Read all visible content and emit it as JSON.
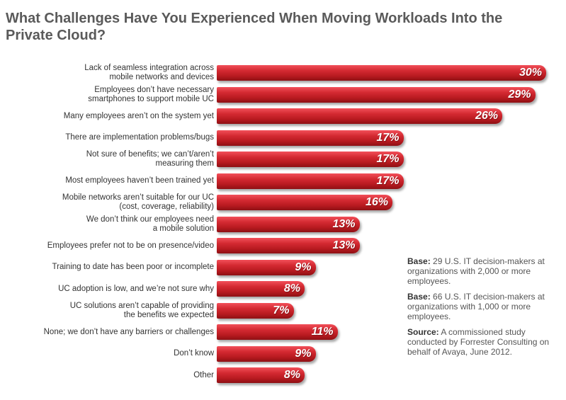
{
  "chart_data": {
    "type": "bar",
    "orientation": "horizontal",
    "title": "What Challenges Have You Experienced When Moving Workloads Into the Private Cloud?",
    "categories": [
      "Lack of seamless integration across mobile networks and devices",
      "Employees don’t have necessary smartphones to support mobile UC",
      "Many employees aren’t on the system yet",
      "There are implementation problems/bugs",
      "Not sure of benefits; we can’t/aren’t measuring them",
      "Most employees haven’t been trained yet",
      "Mobile networks aren’t suitable for our UC (cost, coverage, reliability)",
      "We don’t think our employees need a mobile solution",
      "Employees prefer not to be on presence/video",
      "Training to date has been poor or incomplete",
      "UC adoption is low, and we’re not sure why",
      "UC solutions aren’t capable of providing the benefits we expected",
      "None; we don’t have any barriers or challenges",
      "Don’t know",
      "Other"
    ],
    "values": [
      30,
      29,
      26,
      17,
      17,
      17,
      16,
      13,
      13,
      9,
      8,
      7,
      11,
      9,
      8
    ],
    "value_labels": [
      "30%",
      "29%",
      "26%",
      "17%",
      "17%",
      "17%",
      "16%",
      "13%",
      "13%",
      "9%",
      "8%",
      "7%",
      "11%",
      "9%",
      "8%"
    ],
    "bar_color": "#c8202a",
    "xlim": [
      0,
      30
    ]
  },
  "notes": {
    "base1_label": "Base:",
    "base1_text": " 29 U.S. IT decision-makers at organizations with 2,000 or more employees.",
    "base2_label": "Base:",
    "base2_text": " 66 U.S. IT decision-makers at organizations with 1,000 or more employees.",
    "source_label": "Source:",
    "source_text": " A commissioned study conducted by Forrester Consulting on behalf of Avaya, June 2012."
  }
}
